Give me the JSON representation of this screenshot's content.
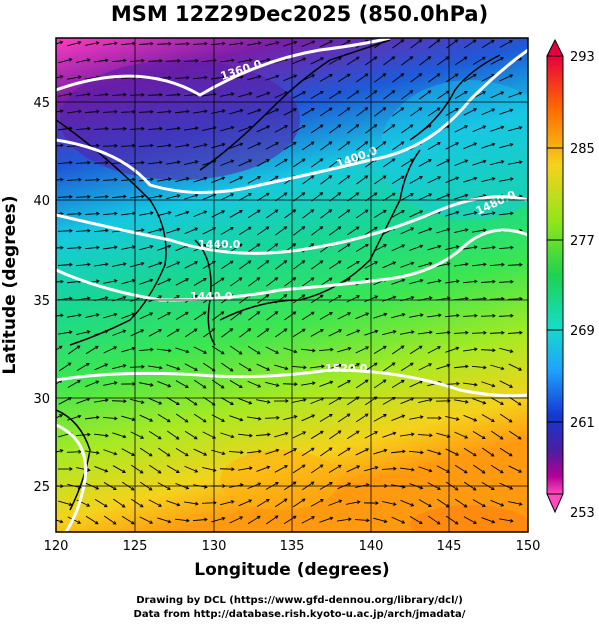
{
  "title": "MSM 12Z29Dec2025 (850.0hPa)",
  "xaxis": {
    "label": "Longitude (degrees)",
    "ticks": [
      "120",
      "125",
      "130",
      "135",
      "140",
      "145",
      "150"
    ]
  },
  "yaxis": {
    "label": "Latitude  (degrees)",
    "ticks": [
      "25",
      "30",
      "35",
      "40",
      "45"
    ]
  },
  "colorbar": {
    "ticks": [
      "293",
      "285",
      "277",
      "269",
      "261",
      "253"
    ],
    "colors": [
      "#e8003c",
      "#ff6a00",
      "#f5d21c",
      "#8fe61a",
      "#1ed250",
      "#16dcc8",
      "#1ea0ff",
      "#1438d2",
      "#4a1ea0",
      "#b40096",
      "#ff4ac0"
    ]
  },
  "contours": [
    {
      "label": "1360.0"
    },
    {
      "label": "1400.0"
    },
    {
      "label": "1440.0"
    },
    {
      "label": "1480.0"
    },
    {
      "label": "1520.0"
    }
  ],
  "credits": {
    "line1": "Drawing by DCL (https://www.gfd-dennou.org/library/dcl/)",
    "line2": "Data from http://database.rish.kyoto-u.ac.jp/arch/jmadata/"
  }
}
